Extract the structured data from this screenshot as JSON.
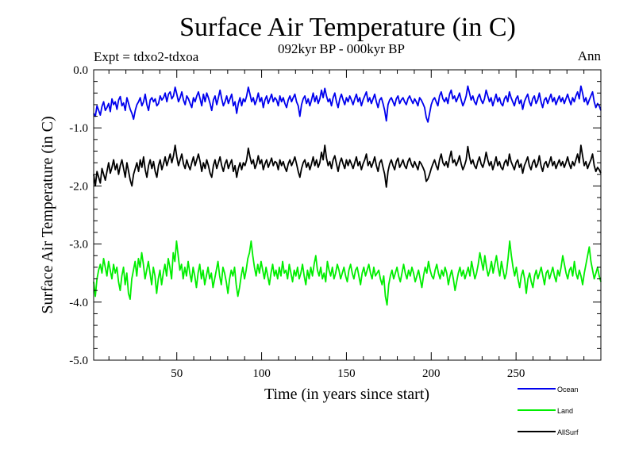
{
  "chart_data": {
    "type": "line",
    "title": "Surface Air Temperature (in C)",
    "subtitle": "092kyr BP - 000kyr BP",
    "experiment_label": "Expt = tdxo2-tdxoa",
    "season_label": "Ann",
    "xlabel": "Time (in years since start)",
    "ylabel": "Surface Air Temperature (in C)",
    "xlim": [
      1,
      300
    ],
    "ylim": [
      -5.0,
      0.0
    ],
    "x_ticks": [
      50,
      100,
      150,
      200,
      250
    ],
    "y_ticks": [
      -5.0,
      -4.0,
      -3.0,
      -2.0,
      -1.0,
      0.0
    ],
    "y_tick_labels": [
      "-5.0",
      "-4.0",
      "-3.0",
      "-2.0",
      "-1.0",
      "0.0"
    ],
    "grid": false,
    "legend_placement": "bottom-right, below plot",
    "series": [
      {
        "name": "Ocean",
        "color": "#0000ee",
        "mean": -0.55,
        "values": [
          -0.75,
          -0.8,
          -0.62,
          -0.7,
          -0.78,
          -0.63,
          -0.55,
          -0.7,
          -0.65,
          -0.58,
          -0.72,
          -0.5,
          -0.6,
          -0.55,
          -0.68,
          -0.52,
          -0.46,
          -0.62,
          -0.57,
          -0.7,
          -0.48,
          -0.58,
          -0.68,
          -0.75,
          -0.85,
          -0.7,
          -0.6,
          -0.55,
          -0.48,
          -0.62,
          -0.55,
          -0.42,
          -0.6,
          -0.7,
          -0.52,
          -0.48,
          -0.55,
          -0.5,
          -0.62,
          -0.58,
          -0.45,
          -0.52,
          -0.48,
          -0.4,
          -0.55,
          -0.42,
          -0.38,
          -0.5,
          -0.45,
          -0.3,
          -0.42,
          -0.55,
          -0.48,
          -0.38,
          -0.52,
          -0.6,
          -0.45,
          -0.5,
          -0.58,
          -0.65,
          -0.48,
          -0.55,
          -0.45,
          -0.38,
          -0.5,
          -0.62,
          -0.42,
          -0.55,
          -0.4,
          -0.48,
          -0.58,
          -0.7,
          -0.52,
          -0.45,
          -0.6,
          -0.48,
          -0.35,
          -0.5,
          -0.62,
          -0.55,
          -0.45,
          -0.58,
          -0.5,
          -0.42,
          -0.62,
          -0.55,
          -0.75,
          -0.58,
          -0.48,
          -0.62,
          -0.5,
          -0.55,
          -0.45,
          -0.3,
          -0.42,
          -0.55,
          -0.48,
          -0.6,
          -0.52,
          -0.4,
          -0.55,
          -0.48,
          -0.65,
          -0.52,
          -0.45,
          -0.58,
          -0.5,
          -0.42,
          -0.55,
          -0.48,
          -0.52,
          -0.62,
          -0.45,
          -0.55,
          -0.48,
          -0.58,
          -0.65,
          -0.52,
          -0.45,
          -0.55,
          -0.48,
          -0.42,
          -0.55,
          -0.62,
          -0.8,
          -0.6,
          -0.5,
          -0.45,
          -0.58,
          -0.5,
          -0.62,
          -0.52,
          -0.4,
          -0.55,
          -0.45,
          -0.58,
          -0.5,
          -0.35,
          -0.48,
          -0.32,
          -0.45,
          -0.55,
          -0.5,
          -0.62,
          -0.48,
          -0.4,
          -0.55,
          -0.65,
          -0.5,
          -0.42,
          -0.52,
          -0.6,
          -0.48,
          -0.55,
          -0.45,
          -0.52,
          -0.6,
          -0.5,
          -0.42,
          -0.55,
          -0.48,
          -0.62,
          -0.52,
          -0.45,
          -0.38,
          -0.55,
          -0.48,
          -0.58,
          -0.5,
          -0.42,
          -0.55,
          -0.65,
          -0.52,
          -0.48,
          -0.58,
          -0.7,
          -0.88,
          -0.6,
          -0.52,
          -0.48,
          -0.55,
          -0.62,
          -0.5,
          -0.45,
          -0.58,
          -0.52,
          -0.48,
          -0.55,
          -0.6,
          -0.5,
          -0.45,
          -0.52,
          -0.58,
          -0.5,
          -0.55,
          -0.62,
          -0.48,
          -0.52,
          -0.58,
          -0.65,
          -0.82,
          -0.9,
          -0.75,
          -0.6,
          -0.52,
          -0.48,
          -0.55,
          -0.62,
          -0.45,
          -0.38,
          -0.5,
          -0.55,
          -0.48,
          -0.58,
          -0.42,
          -0.35,
          -0.5,
          -0.45,
          -0.55,
          -0.48,
          -0.4,
          -0.52,
          -0.62,
          -0.55,
          -0.45,
          -0.28,
          -0.4,
          -0.52,
          -0.45,
          -0.55,
          -0.6,
          -0.48,
          -0.42,
          -0.52,
          -0.58,
          -0.5,
          -0.35,
          -0.45,
          -0.55,
          -0.48,
          -0.62,
          -0.52,
          -0.42,
          -0.55,
          -0.48,
          -0.58,
          -0.62,
          -0.5,
          -0.45,
          -0.55,
          -0.38,
          -0.48,
          -0.55,
          -0.62,
          -0.5,
          -0.45,
          -0.58,
          -0.52,
          -0.68,
          -0.55,
          -0.48,
          -0.42,
          -0.55,
          -0.62,
          -0.5,
          -0.45,
          -0.58,
          -0.52,
          -0.4,
          -0.55,
          -0.65,
          -0.52,
          -0.48,
          -0.58,
          -0.5,
          -0.42,
          -0.55,
          -0.48,
          -0.6,
          -0.52,
          -0.45,
          -0.55,
          -0.48,
          -0.58,
          -0.5,
          -0.42,
          -0.52,
          -0.6,
          -0.48,
          -0.55,
          -0.45,
          -0.38,
          -0.5,
          -0.28,
          -0.4,
          -0.55,
          -0.48,
          -0.6,
          -0.52,
          -0.45,
          -0.38,
          -0.55,
          -0.65,
          -0.58,
          -0.62,
          -0.7
        ]
      },
      {
        "name": "Land",
        "color": "#00ee00",
        "mean": -3.5,
        "values": [
          -3.65,
          -3.9,
          -3.6,
          -3.45,
          -3.35,
          -3.5,
          -3.25,
          -3.4,
          -3.55,
          -3.3,
          -3.45,
          -3.6,
          -3.35,
          -3.5,
          -3.4,
          -3.65,
          -3.8,
          -3.55,
          -3.4,
          -3.7,
          -3.5,
          -3.85,
          -3.95,
          -3.6,
          -3.45,
          -3.3,
          -3.55,
          -3.25,
          -3.4,
          -3.15,
          -3.35,
          -3.6,
          -3.45,
          -3.3,
          -3.5,
          -3.7,
          -3.4,
          -3.55,
          -3.85,
          -3.6,
          -3.45,
          -3.7,
          -3.5,
          -3.35,
          -3.55,
          -3.25,
          -3.4,
          -3.6,
          -3.15,
          -3.3,
          -2.95,
          -3.2,
          -3.45,
          -3.35,
          -3.6,
          -3.4,
          -3.55,
          -3.3,
          -3.5,
          -3.65,
          -3.4,
          -3.55,
          -3.75,
          -3.5,
          -3.35,
          -3.6,
          -3.45,
          -3.7,
          -3.55,
          -3.4,
          -3.6,
          -3.5,
          -3.75,
          -3.6,
          -3.45,
          -3.3,
          -3.55,
          -3.7,
          -3.4,
          -3.5,
          -3.65,
          -3.85,
          -3.6,
          -3.45,
          -3.55,
          -3.4,
          -3.7,
          -3.9,
          -3.75,
          -3.55,
          -3.4,
          -3.6,
          -3.45,
          -3.25,
          -3.15,
          -2.95,
          -3.2,
          -3.4,
          -3.55,
          -3.35,
          -3.5,
          -3.3,
          -3.45,
          -3.6,
          -3.4,
          -3.55,
          -3.7,
          -3.5,
          -3.35,
          -3.55,
          -3.45,
          -3.6,
          -3.4,
          -3.55,
          -3.3,
          -3.5,
          -3.45,
          -3.6,
          -3.35,
          -3.5,
          -3.65,
          -3.45,
          -3.55,
          -3.4,
          -3.6,
          -3.5,
          -3.35,
          -3.55,
          -3.7,
          -3.45,
          -3.6,
          -3.4,
          -3.55,
          -3.35,
          -3.2,
          -3.45,
          -3.55,
          -3.4,
          -3.6,
          -3.5,
          -3.65,
          -3.3,
          -3.45,
          -3.55,
          -3.4,
          -3.6,
          -3.5,
          -3.35,
          -3.45,
          -3.6,
          -3.5,
          -3.4,
          -3.55,
          -3.65,
          -3.45,
          -3.35,
          -3.5,
          -3.6,
          -3.45,
          -3.4,
          -3.55,
          -3.7,
          -3.5,
          -3.4,
          -3.55,
          -3.45,
          -3.35,
          -3.5,
          -3.6,
          -3.4,
          -3.55,
          -3.5,
          -3.45,
          -3.6,
          -3.7,
          -3.55,
          -3.9,
          -4.05,
          -3.7,
          -3.55,
          -3.45,
          -3.6,
          -3.5,
          -3.4,
          -3.55,
          -3.65,
          -3.5,
          -3.35,
          -3.5,
          -3.6,
          -3.45,
          -3.55,
          -3.4,
          -3.5,
          -3.65,
          -3.55,
          -3.45,
          -3.6,
          -3.75,
          -3.55,
          -3.4,
          -3.5,
          -3.3,
          -3.45,
          -3.55,
          -3.6,
          -3.45,
          -3.35,
          -3.5,
          -3.6,
          -3.45,
          -3.55,
          -3.4,
          -3.5,
          -3.7,
          -3.55,
          -3.45,
          -3.6,
          -3.8,
          -3.65,
          -3.5,
          -3.4,
          -3.55,
          -3.45,
          -3.6,
          -3.5,
          -3.4,
          -3.55,
          -3.3,
          -3.45,
          -3.6,
          -3.5,
          -3.35,
          -3.15,
          -3.3,
          -3.45,
          -3.2,
          -3.4,
          -3.55,
          -3.45,
          -3.3,
          -3.5,
          -3.35,
          -3.2,
          -3.4,
          -3.55,
          -3.3,
          -3.45,
          -3.6,
          -3.5,
          -3.25,
          -2.95,
          -3.2,
          -3.4,
          -3.55,
          -3.4,
          -3.6,
          -3.75,
          -3.55,
          -3.45,
          -3.6,
          -3.85,
          -3.6,
          -3.5,
          -3.65,
          -3.75,
          -3.55,
          -3.45,
          -3.6,
          -3.5,
          -3.4,
          -3.55,
          -3.7,
          -3.5,
          -3.45,
          -3.6,
          -3.5,
          -3.4,
          -3.55,
          -3.65,
          -3.45,
          -3.55,
          -3.4,
          -3.2,
          -3.35,
          -3.5,
          -3.6,
          -3.45,
          -3.4,
          -3.55,
          -3.3,
          -3.5,
          -3.6,
          -3.45,
          -3.55,
          -3.7,
          -3.5,
          -3.35,
          -3.2,
          -3.05,
          -3.3,
          -3.45,
          -3.6,
          -3.5,
          -3.4,
          -3.55,
          -3.65
        ]
      },
      {
        "name": "AllSurf",
        "color": "#000000",
        "mean": -1.7,
        "values": [
          -1.8,
          -2.0,
          -1.75,
          -1.85,
          -1.95,
          -1.7,
          -1.8,
          -1.9,
          -1.75,
          -1.6,
          -1.78,
          -1.68,
          -1.55,
          -1.72,
          -1.62,
          -1.8,
          -1.65,
          -1.55,
          -1.7,
          -1.85,
          -1.6,
          -1.75,
          -1.9,
          -2.0,
          -1.8,
          -1.7,
          -1.6,
          -1.75,
          -1.55,
          -1.68,
          -1.5,
          -1.72,
          -1.85,
          -1.65,
          -1.55,
          -1.7,
          -1.58,
          -1.75,
          -1.85,
          -1.65,
          -1.55,
          -1.72,
          -1.62,
          -1.5,
          -1.65,
          -1.55,
          -1.45,
          -1.6,
          -1.48,
          -1.3,
          -1.5,
          -1.65,
          -1.55,
          -1.45,
          -1.62,
          -1.7,
          -1.55,
          -1.65,
          -1.72,
          -1.6,
          -1.5,
          -1.65,
          -1.55,
          -1.45,
          -1.58,
          -1.75,
          -1.6,
          -1.7,
          -1.55,
          -1.65,
          -1.78,
          -1.85,
          -1.65,
          -1.55,
          -1.7,
          -1.6,
          -1.5,
          -1.65,
          -1.75,
          -1.62,
          -1.55,
          -1.7,
          -1.62,
          -1.55,
          -1.75,
          -1.65,
          -1.85,
          -1.7,
          -1.6,
          -1.72,
          -1.6,
          -1.65,
          -1.55,
          -1.35,
          -1.5,
          -1.62,
          -1.55,
          -1.7,
          -1.62,
          -1.48,
          -1.62,
          -1.55,
          -1.72,
          -1.62,
          -1.55,
          -1.68,
          -1.6,
          -1.52,
          -1.65,
          -1.58,
          -1.6,
          -1.72,
          -1.55,
          -1.65,
          -1.58,
          -1.68,
          -1.75,
          -1.62,
          -1.55,
          -1.65,
          -1.58,
          -1.5,
          -1.62,
          -1.75,
          -1.85,
          -1.7,
          -1.6,
          -1.55,
          -1.68,
          -1.6,
          -1.72,
          -1.62,
          -1.5,
          -1.65,
          -1.55,
          -1.68,
          -1.6,
          -1.42,
          -1.55,
          -1.3,
          -1.52,
          -1.65,
          -1.58,
          -1.7,
          -1.55,
          -1.48,
          -1.62,
          -1.75,
          -1.6,
          -1.52,
          -1.62,
          -1.7,
          -1.55,
          -1.65,
          -1.55,
          -1.62,
          -1.7,
          -1.6,
          -1.5,
          -1.65,
          -1.58,
          -1.72,
          -1.62,
          -1.55,
          -1.45,
          -1.65,
          -1.58,
          -1.68,
          -1.6,
          -1.5,
          -1.65,
          -1.75,
          -1.6,
          -1.55,
          -1.68,
          -1.8,
          -2.02,
          -1.75,
          -1.62,
          -1.55,
          -1.65,
          -1.72,
          -1.58,
          -1.52,
          -1.68,
          -1.62,
          -1.55,
          -1.65,
          -1.7,
          -1.58,
          -1.52,
          -1.62,
          -1.68,
          -1.58,
          -1.65,
          -1.72,
          -1.58,
          -1.62,
          -1.68,
          -1.75,
          -1.92,
          -1.88,
          -1.8,
          -1.7,
          -1.62,
          -1.55,
          -1.65,
          -1.72,
          -1.55,
          -1.45,
          -1.6,
          -1.65,
          -1.58,
          -1.68,
          -1.52,
          -1.4,
          -1.6,
          -1.55,
          -1.65,
          -1.58,
          -1.48,
          -1.62,
          -1.72,
          -1.65,
          -1.55,
          -1.32,
          -1.5,
          -1.62,
          -1.55,
          -1.65,
          -1.7,
          -1.58,
          -1.5,
          -1.62,
          -1.68,
          -1.58,
          -1.42,
          -1.55,
          -1.65,
          -1.58,
          -1.72,
          -1.62,
          -1.5,
          -1.65,
          -1.58,
          -1.68,
          -1.72,
          -1.6,
          -1.55,
          -1.65,
          -1.45,
          -1.58,
          -1.65,
          -1.72,
          -1.6,
          -1.55,
          -1.68,
          -1.62,
          -1.78,
          -1.65,
          -1.58,
          -1.5,
          -1.65,
          -1.72,
          -1.6,
          -1.55,
          -1.68,
          -1.62,
          -1.48,
          -1.65,
          -1.75,
          -1.62,
          -1.58,
          -1.68,
          -1.6,
          -1.5,
          -1.65,
          -1.58,
          -1.7,
          -1.62,
          -1.55,
          -1.65,
          -1.58,
          -1.68,
          -1.6,
          -1.5,
          -1.62,
          -1.7,
          -1.58,
          -1.65,
          -1.55,
          -1.45,
          -1.6,
          -1.3,
          -1.48,
          -1.65,
          -1.58,
          -1.7,
          -1.62,
          -1.55,
          -1.45,
          -1.65,
          -1.75,
          -1.68,
          -1.72,
          -1.78
        ]
      }
    ]
  }
}
